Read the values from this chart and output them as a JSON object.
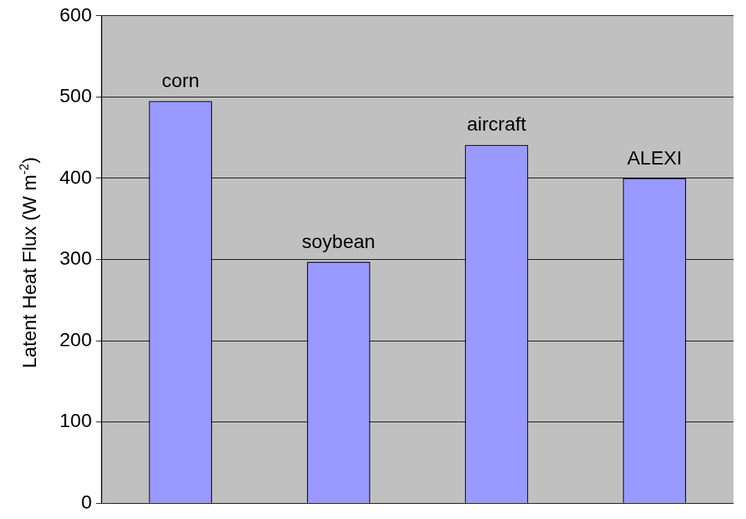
{
  "chart_data": {
    "type": "bar",
    "ylabel": "Latent Heat Flux (W m$^{-2}$)",
    "categories": [
      "corn",
      "soybean",
      "aircraft",
      "ALEXI"
    ],
    "values": [
      495,
      297,
      441,
      400
    ],
    "color": "#9999ff",
    "ylim": [
      0,
      600
    ],
    "yticks": [
      0,
      100,
      200,
      300,
      400,
      500,
      600
    ],
    "grid": "y",
    "legend": false
  }
}
